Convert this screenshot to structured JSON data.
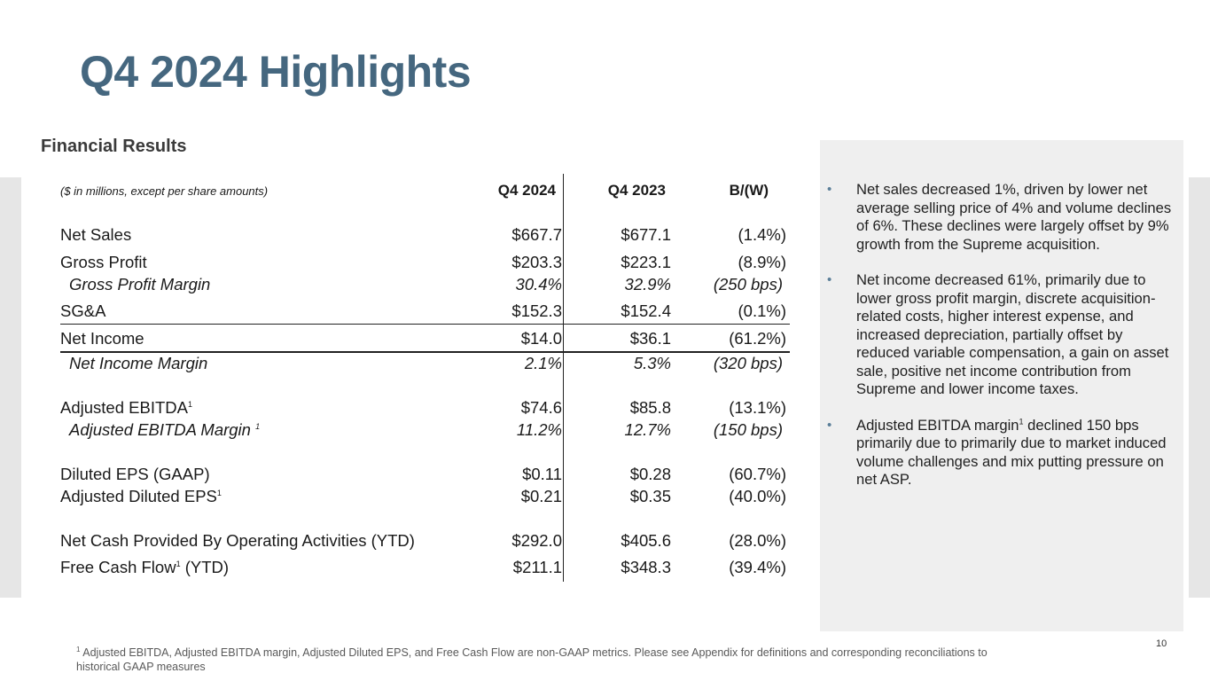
{
  "slide": {
    "title": "Q4 2024 Highlights",
    "section_title": "Financial Results",
    "page_number": "10"
  },
  "table": {
    "units_note": "($ in millions, except per share amounts)",
    "columns": [
      "Q4 2024",
      "Q4 2023",
      "B/(W)"
    ],
    "rows": [
      {
        "label": "Net Sales",
        "sup": "",
        "label_suffix": "",
        "q4_2024": "$667.7",
        "q4_2023": "$677.1",
        "bw": "(1.4%)"
      },
      {
        "label": "Gross Profit",
        "sup": "",
        "label_suffix": "",
        "q4_2024": "$203.3",
        "q4_2023": "$223.1",
        "bw": "(8.9%)"
      },
      {
        "label": "Gross Profit Margin",
        "sup": "",
        "label_suffix": "",
        "q4_2024": "30.4%",
        "q4_2023": "32.9%",
        "bw": "(250 bps)"
      },
      {
        "label": "SG&A",
        "sup": "",
        "label_suffix": "",
        "q4_2024": "$152.3",
        "q4_2023": "$152.4",
        "bw": "(0.1%)"
      },
      {
        "label": "Net Income",
        "sup": "",
        "label_suffix": "",
        "q4_2024": "$14.0",
        "q4_2023": "$36.1",
        "bw": "(61.2%)"
      },
      {
        "label": "Net Income Margin",
        "sup": "",
        "label_suffix": "",
        "q4_2024": "2.1%",
        "q4_2023": "5.3%",
        "bw": "(320 bps)"
      },
      {
        "label": "Adjusted EBITDA",
        "sup": "1",
        "label_suffix": "",
        "q4_2024": "$74.6",
        "q4_2023": "$85.8",
        "bw": "(13.1%)"
      },
      {
        "label": "Adjusted EBITDA Margin ",
        "sup": "1",
        "label_suffix": "",
        "q4_2024": "11.2%",
        "q4_2023": "12.7%",
        "bw": "(150 bps)"
      },
      {
        "label": "Diluted EPS (GAAP)",
        "sup": "",
        "label_suffix": "",
        "q4_2024": "$0.11",
        "q4_2023": "$0.28",
        "bw": "(60.7%)"
      },
      {
        "label": "Adjusted Diluted EPS",
        "sup": "1",
        "label_suffix": "",
        "q4_2024": "$0.21",
        "q4_2023": "$0.35",
        "bw": "(40.0%)"
      },
      {
        "label": "Net Cash Provided By Operating Activities (YTD)",
        "sup": "",
        "label_suffix": "",
        "q4_2024": "$292.0",
        "q4_2023": "$405.6",
        "bw": "(28.0%)"
      },
      {
        "label": "Free Cash Flow",
        "sup": "1",
        "label_suffix": " (YTD)",
        "q4_2024": "$211.1",
        "q4_2023": "$348.3",
        "bw": "(39.4%)"
      }
    ]
  },
  "summary": {
    "bullets": [
      {
        "text": "Net sales decreased 1%, driven by lower net average selling price of 4% and volume declines of 6%. These declines were largely offset by 9% growth from the Supreme acquisition.",
        "sup": "",
        "text_after": ""
      },
      {
        "text": "Net income decreased 61%, primarily due to lower gross profit margin, discrete acquisition-related costs, higher interest expense, and increased depreciation, partially offset by reduced variable compensation, a gain on asset sale, positive net income contribution from Supreme and lower income taxes.",
        "sup": "",
        "text_after": ""
      },
      {
        "text": "Adjusted EBITDA margin",
        "sup": "1",
        "text_after": " declined 150 bps primarily due to primarily due to market induced volume challenges and mix putting pressure on net ASP."
      }
    ]
  },
  "footnote": {
    "marker": "1",
    "text": "Adjusted EBITDA, Adjusted EBITDA margin, Adjusted Diluted EPS, and Free Cash Flow  are non-GAAP metrics. Please see Appendix for definitions and corresponding reconciliations to historical GAAP measures"
  }
}
